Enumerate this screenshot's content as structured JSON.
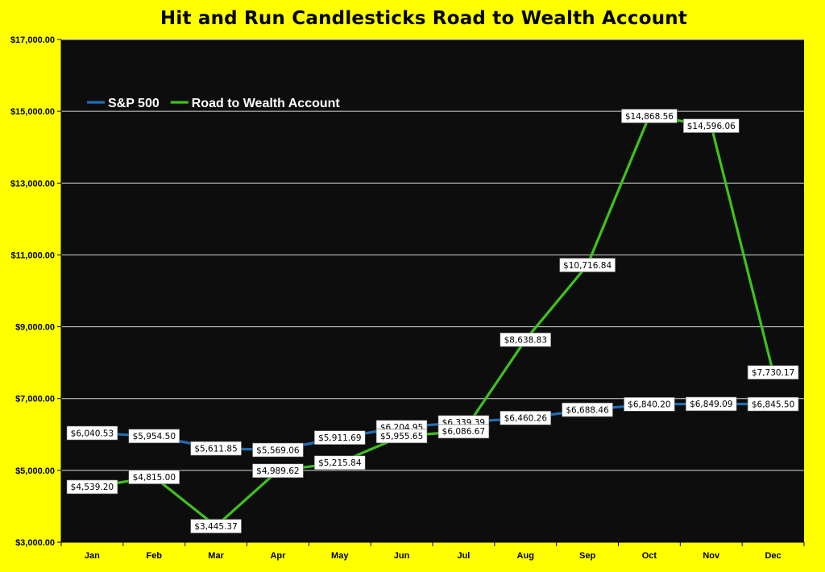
{
  "chart_data": {
    "type": "line",
    "title": "Hit and Run Candlesticks Road to Wealth Account",
    "categories": [
      "Jan",
      "Feb",
      "Mar",
      "Apr",
      "May",
      "Jun",
      "Jul",
      "Aug",
      "Sep",
      "Oct",
      "Nov",
      "Dec"
    ],
    "ylim": [
      3000,
      17000
    ],
    "yticks": [
      3000,
      5000,
      7000,
      9000,
      11000,
      13000,
      15000,
      17000
    ],
    "ytick_labels": [
      "$3,000.00",
      "$5,000.00",
      "$7,000.00",
      "$9,000.00",
      "$11,000.00",
      "$13,000.00",
      "$15,000.00",
      "$17,000.00"
    ],
    "grid": true,
    "legend_position": "top-left",
    "background_color": "#0d0d0d",
    "page_color": "#ffff00",
    "series": [
      {
        "name": "S&P 500",
        "color": "#1f6fb5",
        "values": [
          6040.53,
          5954.5,
          5611.85,
          5569.06,
          5911.69,
          6204.95,
          6339.39,
          6460.26,
          6688.46,
          6840.2,
          6849.09,
          6845.5
        ],
        "labels": [
          "$6,040.53",
          "$5,954.50",
          "$5,611.85",
          "$5,569.06",
          "$5,911.69",
          "$6,204.95",
          "$6,339.39",
          "$6,460.26",
          "$6,688.46",
          "$6,840.20",
          "$6,849.09",
          "$6,845.50"
        ]
      },
      {
        "name": "Road to Wealth Account",
        "color": "#3fc21d",
        "values": [
          4539.2,
          4815.0,
          3445.37,
          4989.62,
          5215.84,
          5955.65,
          6086.67,
          8638.83,
          10716.84,
          14868.56,
          14596.06,
          7730.17
        ],
        "labels": [
          "$4,539.20",
          "$4,815.00",
          "$3,445.37",
          "$4,989.62",
          "$5,215.84",
          "$5,955.65",
          "$6,086.67",
          "$8,638.83",
          "$10,716.84",
          "$14,868.56",
          "$14,596.06",
          "$7,730.17"
        ]
      }
    ]
  }
}
